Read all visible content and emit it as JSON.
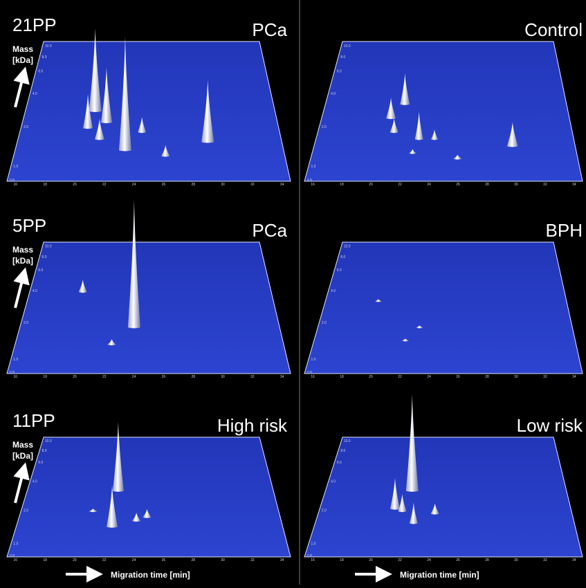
{
  "rows": [
    {
      "group": "21PP",
      "panels": [
        {
          "condition": "PCa"
        },
        {
          "condition": "Control"
        }
      ]
    },
    {
      "group": "5PP",
      "panels": [
        {
          "condition": "PCa"
        },
        {
          "condition": "BPH"
        }
      ]
    },
    {
      "group": "11PP",
      "panels": [
        {
          "condition": "High risk"
        },
        {
          "condition": "Low risk"
        }
      ]
    }
  ],
  "axis": {
    "y_label_line1": "Mass",
    "y_label_line2": "[kDa]",
    "x_label": "Migration time [min]",
    "x_ticks": [
      "16",
      "18",
      "20",
      "22",
      "24",
      "26",
      "28",
      "30",
      "32",
      "34"
    ],
    "y_ticks": [
      "0.8",
      "1.0",
      "2.0",
      "4.0",
      "6.0",
      "8.0",
      "10.0"
    ]
  }
}
